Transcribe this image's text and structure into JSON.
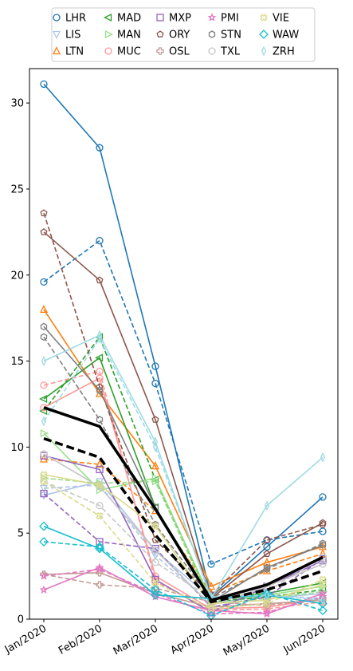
{
  "chart_data": {
    "type": "line",
    "title": "",
    "xlabel": "",
    "ylabel": "",
    "categories": [
      "Jan/2020",
      "Feb/2020",
      "Mar/2020",
      "Apr/2020",
      "May/2020",
      "Jun/2020"
    ],
    "ylim": [
      0,
      32
    ],
    "yticks": [
      0,
      5,
      10,
      15,
      20,
      25,
      30
    ],
    "grid": false,
    "legend_position": "top",
    "series": [
      {
        "name": "LHR",
        "color": "#1f77b4",
        "marker": "circle",
        "line": [
          31.1,
          27.4,
          14.7,
          1.3,
          4.2,
          7.1
        ],
        "dashed": [
          19.6,
          22.0,
          13.7,
          3.2,
          4.6,
          5.1
        ]
      },
      {
        "name": "LIS",
        "color": "#aec7e8",
        "marker": "triangle-down",
        "line": [
          7.2,
          8.0,
          4.0,
          1.2,
          1.2,
          1.5
        ],
        "dashed": [
          7.6,
          7.8,
          3.7,
          0.9,
          1.4,
          1.2
        ]
      },
      {
        "name": "LTN",
        "color": "#ff7f0e",
        "marker": "triangle-up",
        "line": [
          18.0,
          13.1,
          8.9,
          1.9,
          3.3,
          4.2
        ],
        "dashed": [
          9.3,
          9.0,
          6.3,
          1.5,
          2.8,
          3.8
        ]
      },
      {
        "name": "MAD",
        "color": "#2ca02c",
        "marker": "triangle-left",
        "line": [
          12.8,
          15.2,
          6.5,
          1.2,
          1.5,
          2.1
        ],
        "dashed": [
          12.1,
          16.4,
          8.1,
          1.0,
          1.3,
          1.7
        ]
      },
      {
        "name": "MAN",
        "color": "#98df8a",
        "marker": "triangle-right",
        "line": [
          10.8,
          7.5,
          8.2,
          1.1,
          1.4,
          1.9
        ],
        "dashed": [
          8.2,
          7.9,
          8.0,
          0.9,
          1.2,
          1.6
        ]
      },
      {
        "name": "MUC",
        "color": "#ff9896",
        "marker": "circle",
        "line": [
          12.3,
          14.0,
          2.5,
          0.6,
          0.7,
          1.2
        ],
        "dashed": [
          13.6,
          14.4,
          2.2,
          0.5,
          0.6,
          1.0
        ]
      },
      {
        "name": "MXP",
        "color": "#9467bd",
        "marker": "square",
        "line": [
          9.5,
          8.7,
          2.3,
          0.4,
          1.9,
          3.4
        ],
        "dashed": [
          7.3,
          4.5,
          4.1,
          0.7,
          1.3,
          3.5
        ]
      },
      {
        "name": "ORY",
        "color": "#8c564b",
        "marker": "pentagon",
        "line": [
          22.5,
          19.7,
          11.6,
          1.2,
          3.8,
          5.6
        ],
        "dashed": [
          23.6,
          13.5,
          4.6,
          1.4,
          4.6,
          5.5
        ]
      },
      {
        "name": "OSL",
        "color": "#c49c94",
        "marker": "plus",
        "line": [
          2.6,
          2.7,
          1.5,
          0.7,
          0.9,
          1.1
        ],
        "dashed": [
          2.6,
          2.0,
          1.8,
          1.0,
          0.8,
          1.2
        ]
      },
      {
        "name": "PMI",
        "color": "#e377c2",
        "marker": "star",
        "line": [
          1.7,
          3.0,
          1.3,
          0.5,
          0.3,
          1.5
        ],
        "dashed": [
          2.5,
          2.9,
          1.5,
          0.3,
          0.4,
          1.3
        ]
      },
      {
        "name": "STN",
        "color": "#7f7f7f",
        "marker": "hexagon",
        "line": [
          17.0,
          13.3,
          6.5,
          1.0,
          3.0,
          4.3
        ],
        "dashed": [
          16.4,
          11.6,
          5.5,
          1.2,
          2.9,
          4.4
        ]
      },
      {
        "name": "TXL",
        "color": "#c7c7c7",
        "marker": "circle",
        "line": [
          9.6,
          7.7,
          4.0,
          0.8,
          1.9,
          3.2
        ],
        "dashed": [
          8.0,
          6.6,
          3.3,
          1.2,
          1.6,
          3.6
        ]
      },
      {
        "name": "VIE",
        "color": "#dbdb8d",
        "marker": "x",
        "line": [
          8.4,
          7.8,
          5.4,
          0.9,
          1.1,
          2.0
        ],
        "dashed": [
          8.0,
          6.0,
          2.1,
          0.6,
          0.9,
          2.3
        ]
      },
      {
        "name": "WAW",
        "color": "#17becf",
        "marker": "diamond",
        "line": [
          5.4,
          4.1,
          1.4,
          1.2,
          1.4,
          0.9
        ],
        "dashed": [
          4.5,
          4.2,
          1.7,
          0.2,
          1.5,
          0.5
        ]
      },
      {
        "name": "ZRH",
        "color": "#9edae5",
        "marker": "thin-diamond",
        "line": [
          15.0,
          16.5,
          10.3,
          1.2,
          6.6,
          9.4
        ],
        "dashed": [
          11.5,
          16.3,
          10.0,
          1.3,
          1.4,
          1.1
        ]
      }
    ],
    "aggregate": {
      "color": "#000000",
      "line": [
        12.3,
        11.2,
        6.4,
        1.1,
        2.0,
        3.6
      ],
      "dashed": [
        10.5,
        9.4,
        4.9,
        1.0,
        1.7,
        2.8
      ]
    }
  }
}
